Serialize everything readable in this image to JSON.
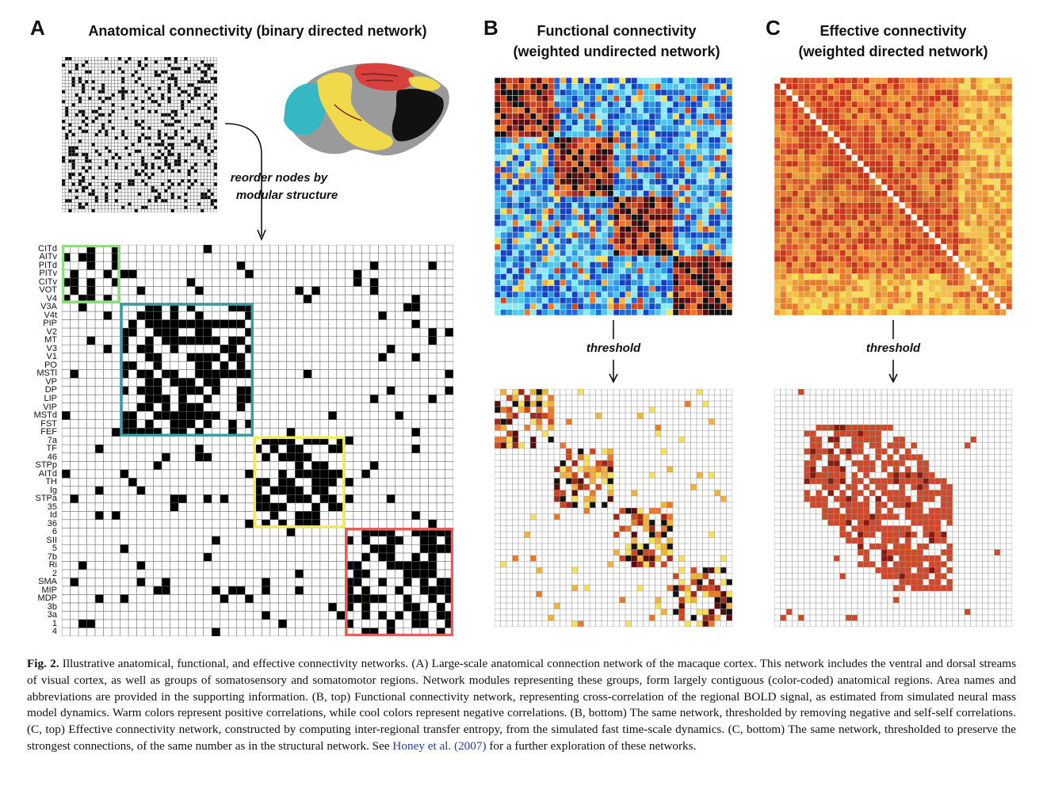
{
  "panels": {
    "a": {
      "letter": "A",
      "title": "Anatomical connectivity (binary directed network)",
      "annotation_line1": "reorder nodes by",
      "annotation_line2": "modular structure"
    },
    "b": {
      "letter": "B",
      "title_line1": "Functional connectivity",
      "title_line2": "(weighted undirected network)",
      "arrow_label": "threshold"
    },
    "c": {
      "letter": "C",
      "title_line1": "Effective connectivity",
      "title_line2": "(weighted directed network)",
      "arrow_label": "threshold"
    }
  },
  "area_labels": [
    "CITd",
    "AITv",
    "PITd",
    "PITv",
    "CITv",
    "VOT",
    "V4",
    "V3A",
    "V4t",
    "PIP",
    "V2",
    "MT",
    "V3",
    "V1",
    "PO",
    "MSTl",
    "VP",
    "DP",
    "LIP",
    "VIP",
    "MSTd",
    "FST",
    "FEF",
    "7a",
    "TF",
    "46",
    "STPp",
    "AITd",
    "TH",
    "Ig",
    "STPa",
    "35",
    "Id",
    "36",
    "6",
    "SII",
    "5",
    "7b",
    "Ri",
    "2",
    "SMA",
    "MIP",
    "MDP",
    "3b",
    "3a",
    "1",
    "4"
  ],
  "module_colors": {
    "visual_ventral": "#8fe07c",
    "visual_dorsal": "#3a9ea0",
    "temporal_frontal": "#f2ea5c",
    "somatomotor": "#ee5b5b"
  },
  "brain_colors": {
    "red": "#d9413f",
    "cyan": "#35b7c4",
    "yellow": "#f0d94a",
    "black": "#111111",
    "gray": "#9a9a9a"
  },
  "caption": {
    "fig_label": "Fig. 2.",
    "text": " Illustrative anatomical, functional, and effective connectivity networks. (A) Large-scale anatomical connection network of the macaque cortex. This network includes the ventral and dorsal streams of visual cortex, as well as groups of somatosensory and somatomotor regions. Network modules representing these groups, form largely contiguous (color-coded) anatomical regions. Area names and abbreviations are provided in the supporting information. (B, top) Functional connectivity network, representing cross-correlation of the regional BOLD signal, as estimated from simulated neural mass model dynamics. Warm colors represent positive correlations, while cool colors represent negative correlations. (B, bottom) The same network, thresholded by removing negative and self-self correlations. (C, top) Effective connectivity network, constructed by computing inter-regional transfer entropy, from the simulated fast time-scale dynamics. (C, bottom) The same network, thresholded to preserve the strongest connections, of the same number as in the structural network. See ",
    "ref": "Honey et al. (2007)",
    "tail": " for a further exploration of these networks."
  }
}
